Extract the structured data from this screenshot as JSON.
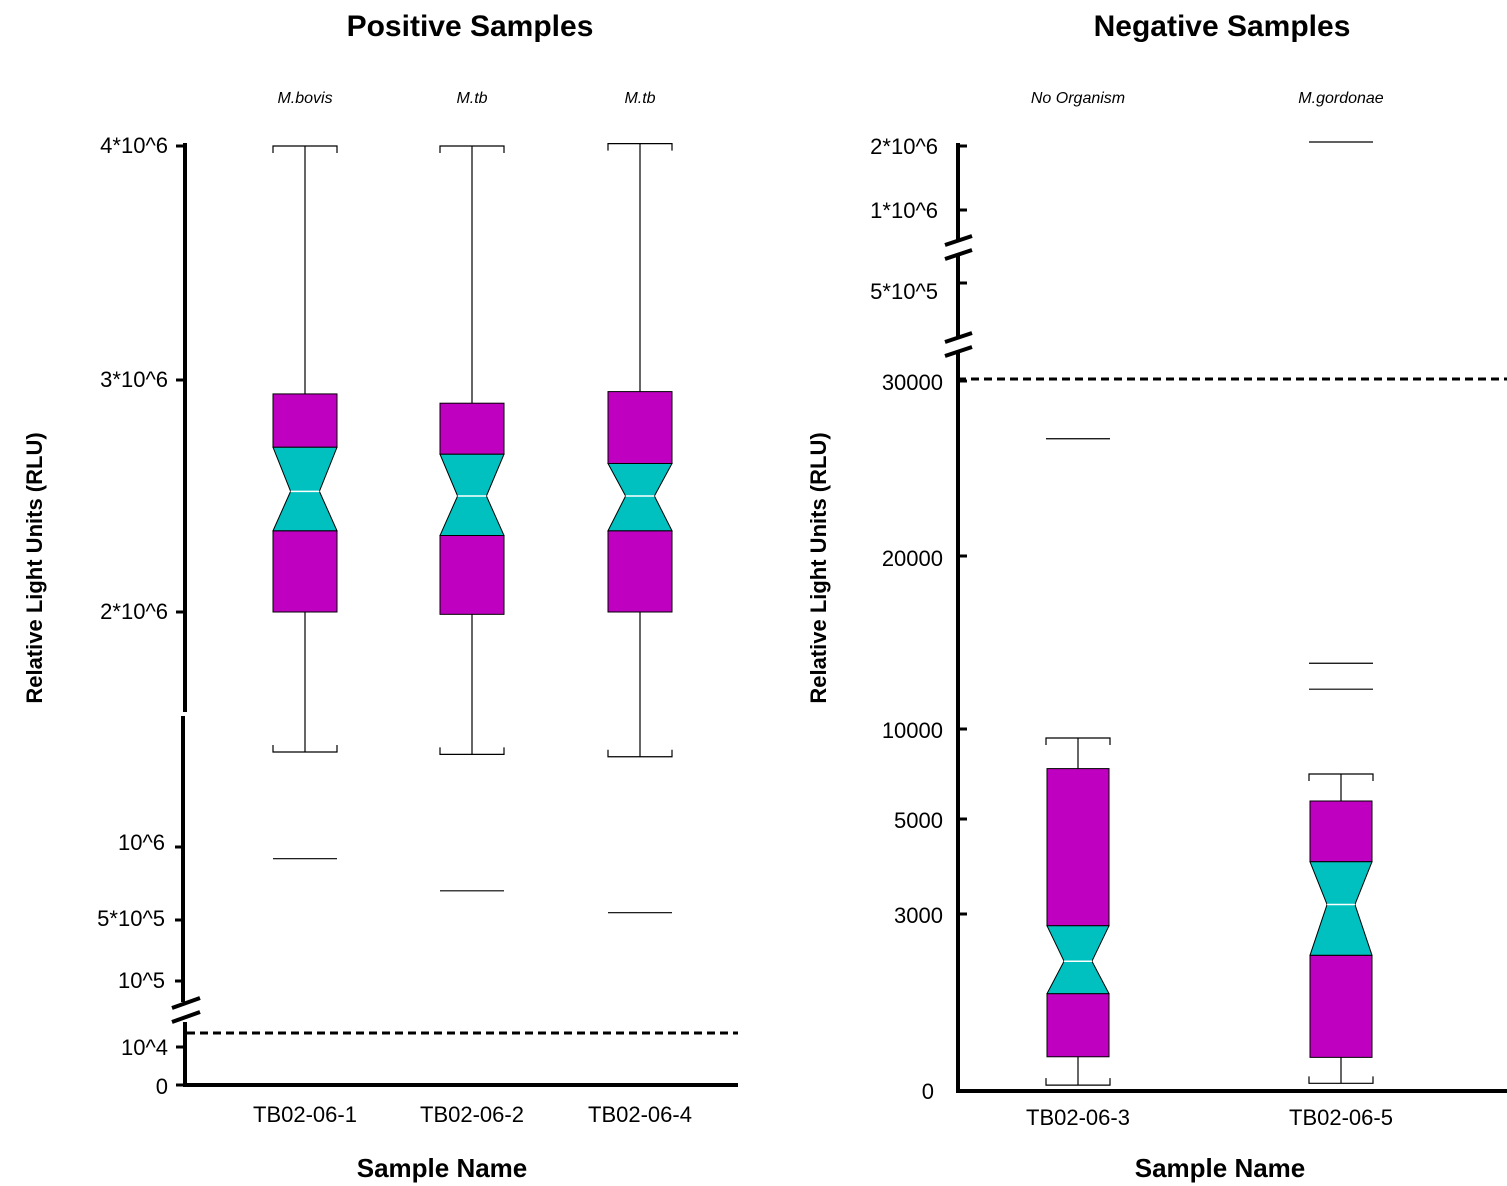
{
  "colors": {
    "box": "#c000c0",
    "notch": "#00c0c0",
    "axis": "#000000",
    "whisker": "#000000"
  },
  "chart_data": [
    {
      "type": "box",
      "title": "Positive Samples",
      "xlabel": "Sample Name",
      "ylabel": "Relative Light Units (RLU)",
      "y_tick_labels": [
        "4*10^6",
        "3*10^6",
        "2*10^6",
        "10^6",
        "5*10^5",
        "10^5",
        "10^4",
        "0"
      ],
      "y_axis_breaks": [
        "between 10^4 and 10^5",
        "between 10^6 and 2*10^6"
      ],
      "cutoff_line": 10000,
      "samples": [
        {
          "name": "TB02-06-1",
          "organism": "M.bovis",
          "whisker_high": 4000000,
          "q3": 2940000,
          "notch_high": 2710000,
          "median": 2520000,
          "notch_low": 2350000,
          "q1": 2000000,
          "whisker_low": 1400000,
          "outlier": 920000
        },
        {
          "name": "TB02-06-2",
          "organism": "M.tb",
          "whisker_high": 4000000,
          "q3": 2900000,
          "notch_high": 2680000,
          "median": 2500000,
          "notch_low": 2330000,
          "q1": 1990000,
          "whisker_low": 1390000,
          "outlier": 700000
        },
        {
          "name": "TB02-06-4",
          "organism": "M.tb",
          "whisker_high": 4010000,
          "q3": 2950000,
          "notch_high": 2640000,
          "median": 2500000,
          "notch_low": 2350000,
          "q1": 2000000,
          "whisker_low": 1380000,
          "outlier": 550000
        }
      ]
    },
    {
      "type": "box",
      "title": "Negative Samples",
      "xlabel": "Sample Name",
      "ylabel": "Relative Light Units (RLU)",
      "y_tick_labels": [
        "2*10^6",
        "1*10^6",
        "5*10^5",
        "30000",
        "20000",
        "10000",
        "5000",
        "3000",
        "0"
      ],
      "y_axis_breaks": [
        "between 30000 and 5*10^5",
        "between 5*10^5 and 1*10^6"
      ],
      "cutoff_line": 30000,
      "samples": [
        {
          "name": "TB02-06-3",
          "organism": "No Organism",
          "whisker_high": 9500,
          "q3": 7800,
          "notch_high": 2800,
          "median": 2200,
          "notch_low": 1650,
          "q1": 580,
          "whisker_low": 100,
          "outlier": 26700
        },
        {
          "name": "TB02-06-5",
          "organism": "M.gordonae",
          "whisker_high": 7500,
          "q3": 6000,
          "notch_high": 4100,
          "median": 3200,
          "notch_low": 2300,
          "q1": 570,
          "whisker_low": 130,
          "outliers": [
            2000000,
            13800,
            12300
          ]
        }
      ]
    }
  ]
}
